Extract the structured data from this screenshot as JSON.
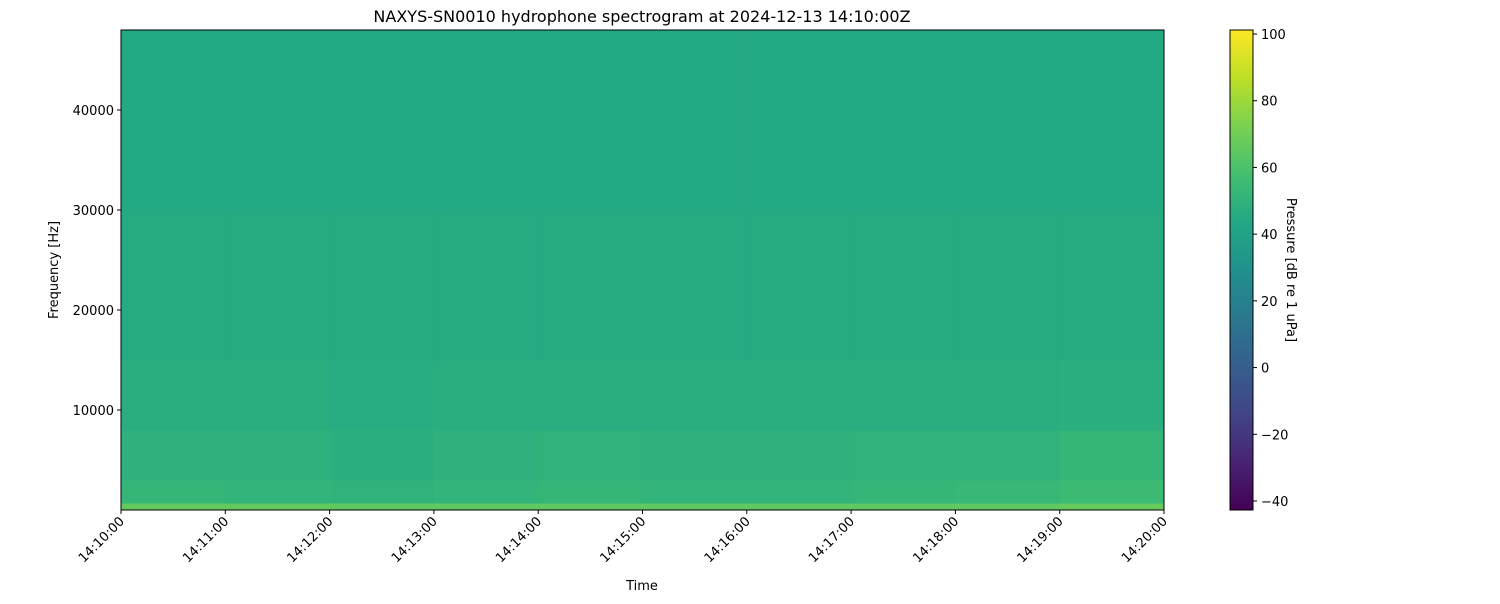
{
  "chart_data": {
    "type": "heatmap",
    "title": "NAXYS-SN0010 hydrophone spectrogram at 2024-12-13 14:10:00Z",
    "xlabel": "Time",
    "ylabel": "Frequency [Hz]",
    "colorbar_label": "Pressure [dB re 1 uPa]",
    "colormap": "viridis",
    "color_range": [
      -42.7,
      101.2
    ],
    "colorbar_ticks": [
      -40,
      -20,
      0,
      20,
      40,
      60,
      80,
      100
    ],
    "colorbar_tick_labels": [
      "−40",
      "−20",
      "0",
      "20",
      "40",
      "60",
      "80",
      "100"
    ],
    "ylim": [
      0,
      48000
    ],
    "yticks": [
      10000,
      20000,
      30000,
      40000
    ],
    "ytick_labels": [
      "10000",
      "20000",
      "30000",
      "40000"
    ],
    "xlim": [
      "14:10:00",
      "14:20:00"
    ],
    "xtick_labels": [
      "14:10:00",
      "14:11:00",
      "14:12:00",
      "14:13:00",
      "14:14:00",
      "14:15:00",
      "14:16:00",
      "14:17:00",
      "14:18:00",
      "14:19:00",
      "14:20:00"
    ],
    "time_bins": [
      "14:10:00",
      "14:11:00",
      "14:12:00",
      "14:13:00",
      "14:14:00",
      "14:15:00",
      "14:16:00",
      "14:17:00",
      "14:18:00",
      "14:19:00",
      "14:20:00"
    ],
    "frequency_band_edges": [
      0,
      700,
      3000,
      8000,
      15000,
      30000,
      48000
    ],
    "values": [
      [
        66,
        66,
        65,
        65,
        65,
        65,
        65,
        65,
        65,
        67
      ],
      [
        52,
        51,
        50,
        51,
        52,
        51,
        51,
        52,
        53,
        55
      ],
      [
        49,
        49,
        48,
        49,
        50,
        49,
        49,
        50,
        50,
        52
      ],
      [
        47,
        47,
        46,
        47,
        47,
        47,
        47,
        47,
        47,
        48
      ],
      [
        45,
        45,
        45,
        45,
        45,
        45,
        45,
        45,
        45,
        45
      ],
      [
        44,
        44,
        44,
        44,
        44,
        44,
        44,
        44,
        44,
        44
      ]
    ],
    "grid": false
  }
}
